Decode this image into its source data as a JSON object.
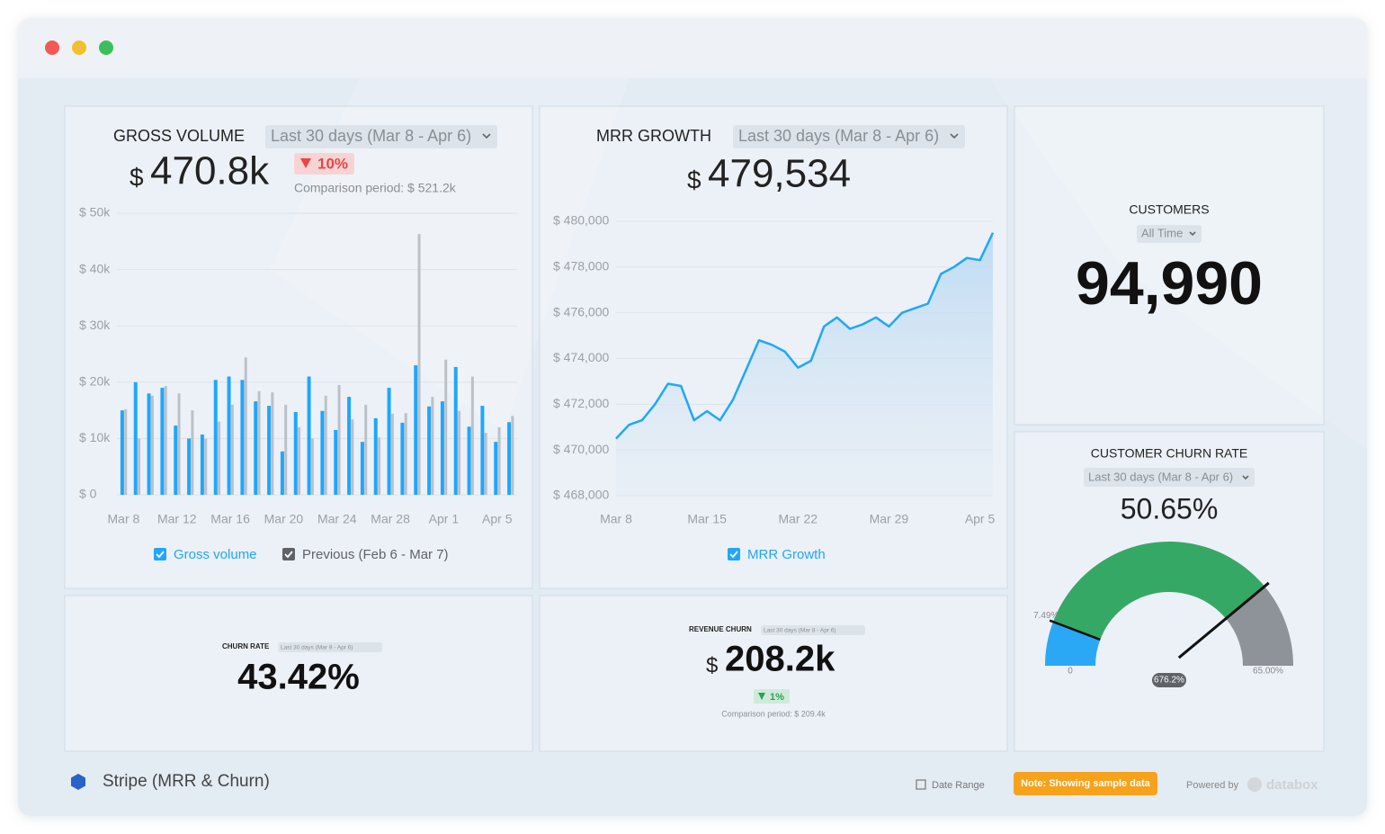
{
  "chart_data": [
    {
      "type": "bar",
      "title": "GROSS VOLUME",
      "period": "Last 30 days (Mar 8 - Apr 6)",
      "total": {
        "currency": "$",
        "value": "470.8k"
      },
      "change": "10%",
      "comparison": "Comparison period: $ 521.2k",
      "categories": [
        "Mar 8",
        null,
        null,
        null,
        "Mar 12",
        null,
        null,
        null,
        "Mar 16",
        null,
        null,
        null,
        "Mar 20",
        null,
        null,
        null,
        "Mar 24",
        null,
        null,
        null,
        "Mar 28",
        null,
        null,
        null,
        "Apr 1",
        null,
        null,
        null,
        "Apr 5",
        null
      ],
      "series": [
        {
          "name": "Gross volume",
          "color": "#1ea7fd",
          "values": [
            15000,
            20000,
            18000,
            19000,
            12300,
            10000,
            10700,
            20400,
            21000,
            20400,
            16600,
            15800,
            7700,
            14700,
            21000,
            14900,
            11500,
            17400,
            9400,
            13600,
            19000,
            12800,
            23000,
            15700,
            16600,
            22700,
            12100,
            15800,
            9400,
            12900
          ]
        },
        {
          "name": "Previous (Feb 6 - Mar 7)",
          "color": "#bcc1c7",
          "values": [
            15200,
            10000,
            17600,
            19300,
            18000,
            15000,
            10000,
            13000,
            16000,
            24400,
            18400,
            18200,
            16000,
            12000,
            10000,
            17600,
            19500,
            13400,
            16000,
            10200,
            14400,
            14500,
            46300,
            17400,
            24000,
            14900,
            21000,
            11000,
            12000,
            14000
          ]
        }
      ],
      "ylim": [
        0,
        50000
      ],
      "yticks": [
        {
          "value": 0,
          "label": "$ 0"
        },
        {
          "value": 10000,
          "label": "$ 10k"
        },
        {
          "value": 20000,
          "label": "$ 20k"
        },
        {
          "value": 30000,
          "label": "$ 30k"
        },
        {
          "value": 40000,
          "label": "$ 40k"
        },
        {
          "value": 50000,
          "label": "$ 50k"
        }
      ],
      "grid": true
    },
    {
      "type": "line",
      "title": "MRR GROWTH",
      "period": "Last 30 days (Mar 8 - Apr 6)",
      "total": {
        "currency": "$",
        "value": "479,534"
      },
      "categories": [
        "Mar 8",
        null,
        null,
        null,
        null,
        null,
        null,
        "Mar 15",
        null,
        null,
        null,
        null,
        null,
        null,
        "Mar 22",
        null,
        null,
        null,
        null,
        null,
        null,
        "Mar 29",
        null,
        null,
        null,
        null,
        null,
        null,
        "Apr 5",
        null
      ],
      "series": [
        {
          "name": "MRR Growth",
          "color": "#1ea7fd",
          "values": [
            470500,
            471100,
            471300,
            472000,
            472900,
            472800,
            471300,
            471700,
            471300,
            472200,
            473500,
            474800,
            474600,
            474300,
            473600,
            473900,
            475400,
            475800,
            475300,
            475500,
            475800,
            475400,
            476000,
            476200,
            476400,
            477700,
            478000,
            478400,
            478300,
            479500
          ]
        }
      ],
      "ylim": [
        468000,
        480000
      ],
      "yticks": [
        {
          "value": 468000,
          "label": "$ 468,000"
        },
        {
          "value": 470000,
          "label": "$ 470,000"
        },
        {
          "value": 472000,
          "label": "$ 472,000"
        },
        {
          "value": 474000,
          "label": "$ 474,000"
        },
        {
          "value": 476000,
          "label": "$ 476,000"
        },
        {
          "value": 478000,
          "label": "$ 478,000"
        },
        {
          "value": 480000,
          "label": "$ 480,000"
        }
      ],
      "grid": true
    },
    {
      "type": "gauge",
      "title": "CUSTOMER CHURN RATE",
      "period": "Last 30 days (Mar 8 - Apr 6)",
      "value": 50.65,
      "value_label": "50.65%",
      "min": 0,
      "max": {
        "value": 65,
        "label": "65.00%"
      },
      "threshold": {
        "value": 7.49,
        "label": "7.49%"
      },
      "needle_label": "676.2%",
      "colors": [
        "#2aa8f5",
        "#35a866",
        "#8e9399"
      ]
    }
  ],
  "widgets": {
    "customers": {
      "title": "CUSTOMERS",
      "period": "All Time",
      "value": "94,990"
    },
    "churn_rate": {
      "title": "CHURN RATE",
      "period": "Last 30 days (Mar 8 - Apr 6)",
      "value": "43.42%"
    },
    "revenue_churn": {
      "title": "REVENUE CHURN",
      "period": "Last 30 days (Mar 8 - Apr 6)",
      "currency": "$",
      "value": "208.2k",
      "change": "1%",
      "comparison": "Comparison period: $ 209.4k"
    }
  },
  "footer": {
    "dashboard": "Stripe (MRR & Churn)",
    "date_range": "Date Range",
    "note": "Note: Showing sample data",
    "powered_by": "Powered by",
    "brand": "databox"
  }
}
